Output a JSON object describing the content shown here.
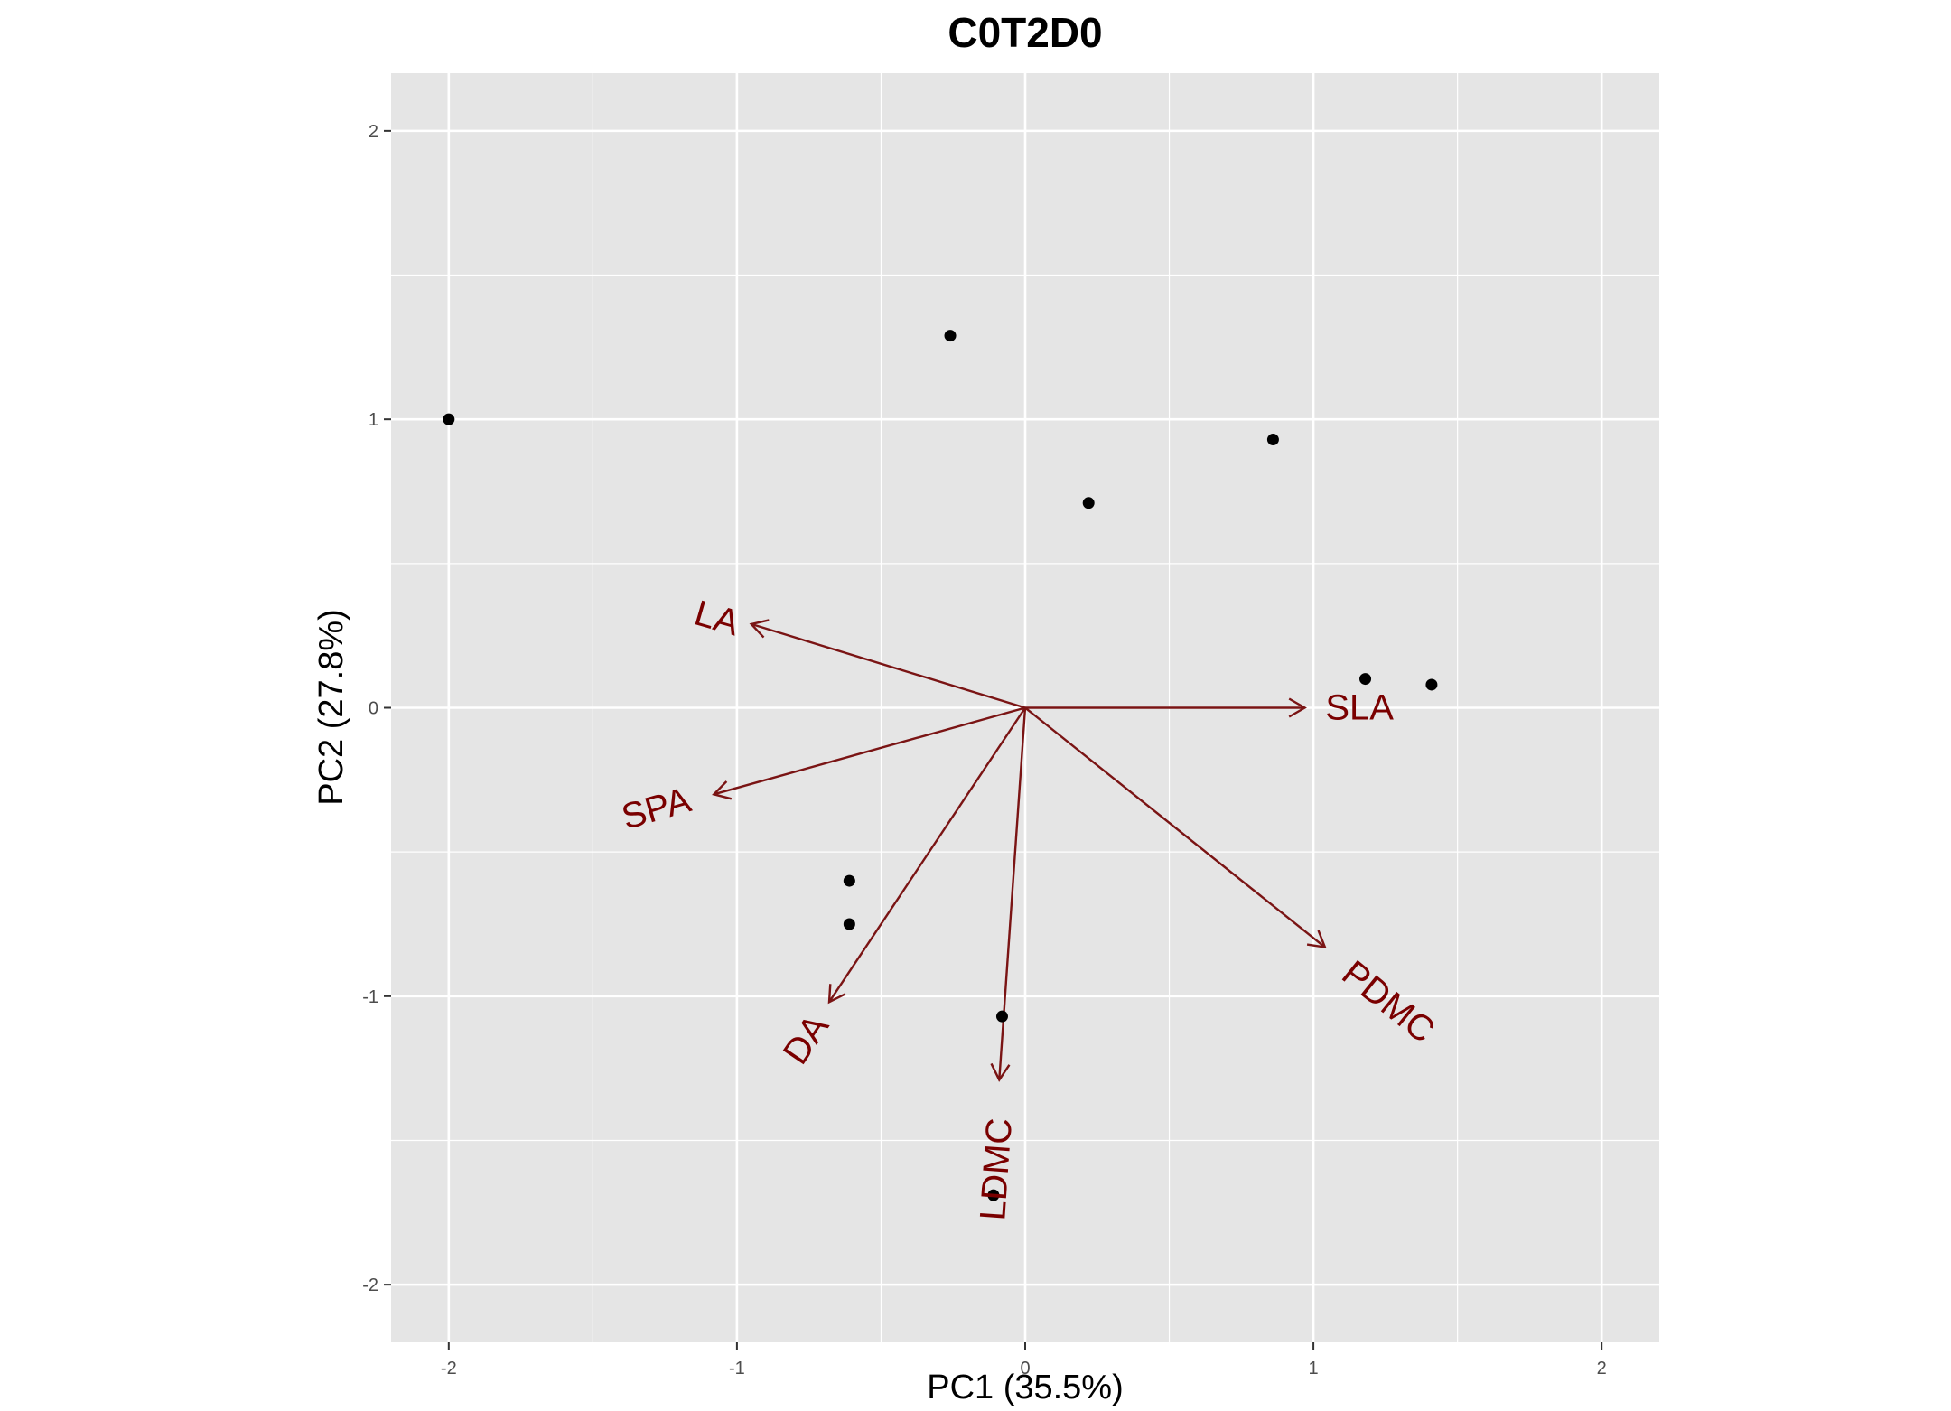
{
  "chart_data": {
    "type": "scatter",
    "title": "C0T2D0",
    "xlabel": "PC1 (35.5%)",
    "ylabel": "PC2 (27.8%)",
    "xlim": [
      -2.2,
      2.2
    ],
    "ylim": [
      -2.2,
      2.2
    ],
    "x_ticks": [
      -2,
      -1,
      0,
      1,
      2
    ],
    "y_ticks": [
      -2,
      -1,
      0,
      1,
      2
    ],
    "x_tick_labels": [
      "-2",
      "-1",
      "0",
      "1",
      "2"
    ],
    "y_tick_labels": [
      "-2",
      "-1",
      "0",
      "1",
      "2"
    ],
    "grid": true,
    "colors": {
      "panel": "#e5e5e5",
      "grid": "#ffffff",
      "points": "#000000",
      "loadings": "#7a1414",
      "loading_labels": "#7a0000"
    },
    "points": [
      {
        "x": -2.0,
        "y": 1.0
      },
      {
        "x": -0.26,
        "y": 1.29
      },
      {
        "x": 0.86,
        "y": 0.93
      },
      {
        "x": 0.22,
        "y": 0.71
      },
      {
        "x": 1.18,
        "y": 0.1
      },
      {
        "x": 1.41,
        "y": 0.08
      },
      {
        "x": -0.61,
        "y": -0.6
      },
      {
        "x": -0.61,
        "y": -0.75
      },
      {
        "x": -0.08,
        "y": -1.07
      },
      {
        "x": -0.11,
        "y": -1.69
      }
    ],
    "loadings": [
      {
        "name": "LA",
        "x": -0.95,
        "y": 0.29,
        "label_x": -1.07,
        "label_y": 0.31,
        "label_angle": 16
      },
      {
        "name": "SLA",
        "x": 0.97,
        "y": 0.0,
        "label_x": 1.16,
        "label_y": 0.0,
        "label_angle": 0
      },
      {
        "name": "SPA",
        "x": -1.08,
        "y": -0.3,
        "label_x": -1.28,
        "label_y": -0.35,
        "label_angle": -16
      },
      {
        "name": "DA",
        "x": -0.68,
        "y": -1.02,
        "label_x": -0.76,
        "label_y": -1.15,
        "label_angle": -56
      },
      {
        "name": "LDMC",
        "x": -0.09,
        "y": -1.29,
        "label_x": -0.1,
        "label_y": -1.6,
        "label_angle": -86
      },
      {
        "name": "PDMC",
        "x": 1.04,
        "y": -0.83,
        "label_x": 1.26,
        "label_y": -1.02,
        "label_angle": 39
      }
    ]
  }
}
